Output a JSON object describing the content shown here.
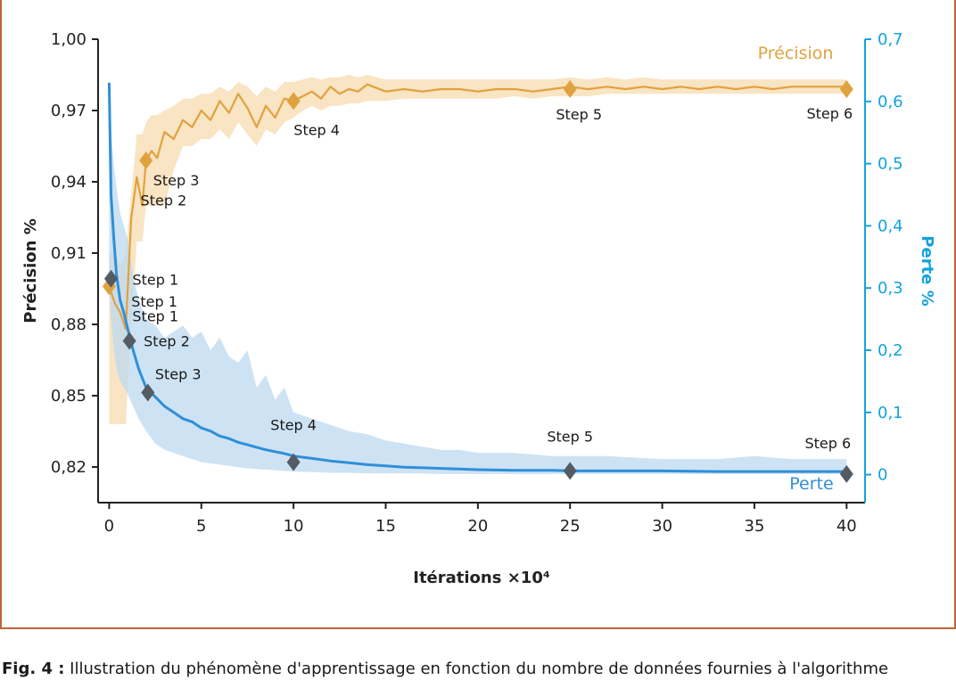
{
  "chart_data": {
    "type": "line",
    "xlabel": "Itérations ×10⁴",
    "ylabel_left": "Précision %",
    "ylabel_right": "Perte %",
    "xlim": [
      -0.6,
      41
    ],
    "x_ticks": [
      0,
      5,
      10,
      15,
      20,
      25,
      30,
      35,
      40
    ],
    "ylim_left": [
      0.805,
      1.0
    ],
    "y_ticks_left": [
      "1,00",
      "0,97",
      "0,94",
      "0,91",
      "0,88",
      "0,85",
      "0,82"
    ],
    "y_ticks_left_values": [
      1.0,
      0.97,
      0.94,
      0.91,
      0.88,
      0.85,
      0.82
    ],
    "ylim_right": [
      -0.045,
      0.7
    ],
    "y_ticks_right": [
      "0,7",
      "0,6",
      "0,5",
      "0,4",
      "0,3",
      "0,2",
      "0,1",
      "0"
    ],
    "y_ticks_right_values": [
      0.7,
      0.6,
      0.5,
      0.4,
      0.3,
      0.2,
      0.1,
      0.0
    ],
    "colors": {
      "precision": "#e0a23e",
      "precision_band": "#f8dfb8",
      "loss": "#2f8fd8",
      "loss_band": "#bcd9f0",
      "loss_axis": "#12a3dc",
      "marker_loss": "#545b63",
      "frame": "#c0653a"
    },
    "series": [
      {
        "name": "Précision",
        "axis": "left",
        "x": [
          0,
          0.3,
          0.6,
          0.9,
          1.2,
          1.5,
          1.8,
          2.0,
          2.3,
          2.6,
          3,
          3.5,
          4,
          4.5,
          5,
          5.5,
          6,
          6.5,
          7,
          7.5,
          8,
          8.5,
          9,
          9.5,
          10,
          10.5,
          11,
          11.5,
          12,
          12.5,
          13,
          13.5,
          14,
          15,
          16,
          17,
          18,
          19,
          20,
          21,
          22,
          23,
          24,
          25,
          26,
          27,
          28,
          29,
          30,
          31,
          32,
          33,
          34,
          35,
          36,
          37,
          38,
          39,
          40
        ],
        "y": [
          0.896,
          0.889,
          0.885,
          0.878,
          0.925,
          0.942,
          0.93,
          0.949,
          0.953,
          0.95,
          0.961,
          0.958,
          0.966,
          0.963,
          0.97,
          0.966,
          0.974,
          0.969,
          0.977,
          0.971,
          0.963,
          0.972,
          0.967,
          0.975,
          0.974,
          0.976,
          0.978,
          0.975,
          0.98,
          0.977,
          0.979,
          0.978,
          0.981,
          0.978,
          0.979,
          0.978,
          0.979,
          0.979,
          0.978,
          0.979,
          0.979,
          0.978,
          0.979,
          0.98,
          0.979,
          0.98,
          0.979,
          0.98,
          0.979,
          0.98,
          0.979,
          0.98,
          0.979,
          0.98,
          0.979,
          0.98,
          0.98,
          0.98,
          0.98
        ],
        "band_low": [
          0.838,
          0.838,
          0.838,
          0.838,
          0.88,
          0.915,
          0.915,
          0.93,
          0.93,
          0.93,
          0.93,
          0.945,
          0.955,
          0.955,
          0.958,
          0.958,
          0.962,
          0.958,
          0.965,
          0.96,
          0.955,
          0.962,
          0.96,
          0.965,
          0.967,
          0.97,
          0.972,
          0.97,
          0.972,
          0.972,
          0.973,
          0.973,
          0.974,
          0.974,
          0.975,
          0.975,
          0.975,
          0.975,
          0.975,
          0.975,
          0.976,
          0.975,
          0.976,
          0.976,
          0.976,
          0.977,
          0.977,
          0.977,
          0.977,
          0.977,
          0.977,
          0.977,
          0.977,
          0.977,
          0.977,
          0.977,
          0.977,
          0.977,
          0.977
        ],
        "band_high": [
          0.91,
          0.91,
          0.905,
          0.91,
          0.935,
          0.96,
          0.96,
          0.965,
          0.968,
          0.968,
          0.97,
          0.972,
          0.975,
          0.975,
          0.977,
          0.977,
          0.98,
          0.978,
          0.982,
          0.98,
          0.976,
          0.98,
          0.978,
          0.982,
          0.982,
          0.983,
          0.984,
          0.983,
          0.984,
          0.984,
          0.985,
          0.984,
          0.985,
          0.983,
          0.983,
          0.983,
          0.983,
          0.983,
          0.983,
          0.983,
          0.983,
          0.983,
          0.983,
          0.984,
          0.983,
          0.984,
          0.983,
          0.984,
          0.983,
          0.983,
          0.983,
          0.983,
          0.983,
          0.983,
          0.983,
          0.983,
          0.983,
          0.983,
          0.983
        ]
      },
      {
        "name": "Perte",
        "axis": "right",
        "x": [
          0,
          0.1,
          0.25,
          0.4,
          0.6,
          0.8,
          1,
          1.3,
          1.6,
          2,
          2.5,
          3,
          3.5,
          4,
          4.5,
          5,
          5.5,
          6,
          6.5,
          7,
          7.5,
          8,
          8.5,
          9,
          9.5,
          10,
          11,
          12,
          13,
          14,
          15,
          16,
          17,
          18,
          19,
          20,
          22,
          24,
          25,
          27,
          30,
          33,
          35,
          37,
          40
        ],
        "y": [
          0.63,
          0.45,
          0.38,
          0.32,
          0.28,
          0.26,
          0.235,
          0.2,
          0.17,
          0.14,
          0.125,
          0.11,
          0.1,
          0.09,
          0.085,
          0.075,
          0.07,
          0.062,
          0.058,
          0.052,
          0.048,
          0.044,
          0.04,
          0.037,
          0.034,
          0.03,
          0.026,
          0.022,
          0.019,
          0.016,
          0.014,
          0.012,
          0.011,
          0.01,
          0.009,
          0.008,
          0.007,
          0.007,
          0.006,
          0.006,
          0.006,
          0.005,
          0.005,
          0.005,
          0.005
        ],
        "band_low": [
          0.3,
          0.25,
          0.2,
          0.17,
          0.15,
          0.14,
          0.13,
          0.11,
          0.09,
          0.07,
          0.05,
          0.04,
          0.035,
          0.03,
          0.025,
          0.02,
          0.018,
          0.016,
          0.014,
          0.012,
          0.01,
          0.009,
          0.008,
          0.007,
          0.006,
          0.005,
          0.004,
          0.003,
          0.003,
          0.002,
          0.002,
          0.002,
          0.002,
          0.001,
          0.001,
          0.001,
          0.001,
          0.001,
          0.001,
          0.001,
          0.001,
          0.001,
          0.001,
          0.001,
          0.001
        ],
        "band_high": [
          0.63,
          0.55,
          0.5,
          0.46,
          0.42,
          0.4,
          0.38,
          0.32,
          0.28,
          0.25,
          0.24,
          0.22,
          0.23,
          0.24,
          0.22,
          0.23,
          0.2,
          0.22,
          0.19,
          0.18,
          0.2,
          0.14,
          0.16,
          0.12,
          0.14,
          0.1,
          0.09,
          0.08,
          0.07,
          0.065,
          0.055,
          0.05,
          0.045,
          0.04,
          0.04,
          0.035,
          0.035,
          0.03,
          0.03,
          0.03,
          0.025,
          0.025,
          0.03,
          0.025,
          0.025
        ]
      }
    ],
    "markers_precision": [
      {
        "x": 0,
        "y": 0.896,
        "label": "Step 1"
      },
      {
        "x": 2,
        "y": 0.949,
        "label": "Step 3"
      },
      {
        "x": 10,
        "y": 0.974,
        "label": "Step 4"
      },
      {
        "x": 25,
        "y": 0.979,
        "label": "Step 5"
      },
      {
        "x": 40,
        "y": 0.979,
        "label": "Step 6"
      }
    ],
    "marker_precision_extra_label": "Step 2",
    "markers_loss": [
      {
        "x": 0.1,
        "y": 0.315,
        "label": "Step 1"
      },
      {
        "x": 1.1,
        "y": 0.215,
        "label": "Step 2"
      },
      {
        "x": 2.1,
        "y": 0.132,
        "label": "Step 3"
      },
      {
        "x": 10,
        "y": 0.02,
        "label": "Step 4"
      },
      {
        "x": 25,
        "y": 0.006,
        "label": "Step 5"
      },
      {
        "x": 40,
        "y": 0.001,
        "label": "Step 6"
      }
    ]
  },
  "caption": {
    "prefix": "Fig. 4 :",
    "text": " Illustration du phénomène d'apprentissage en fonction du nombre de données fournies à l'algorithme"
  }
}
